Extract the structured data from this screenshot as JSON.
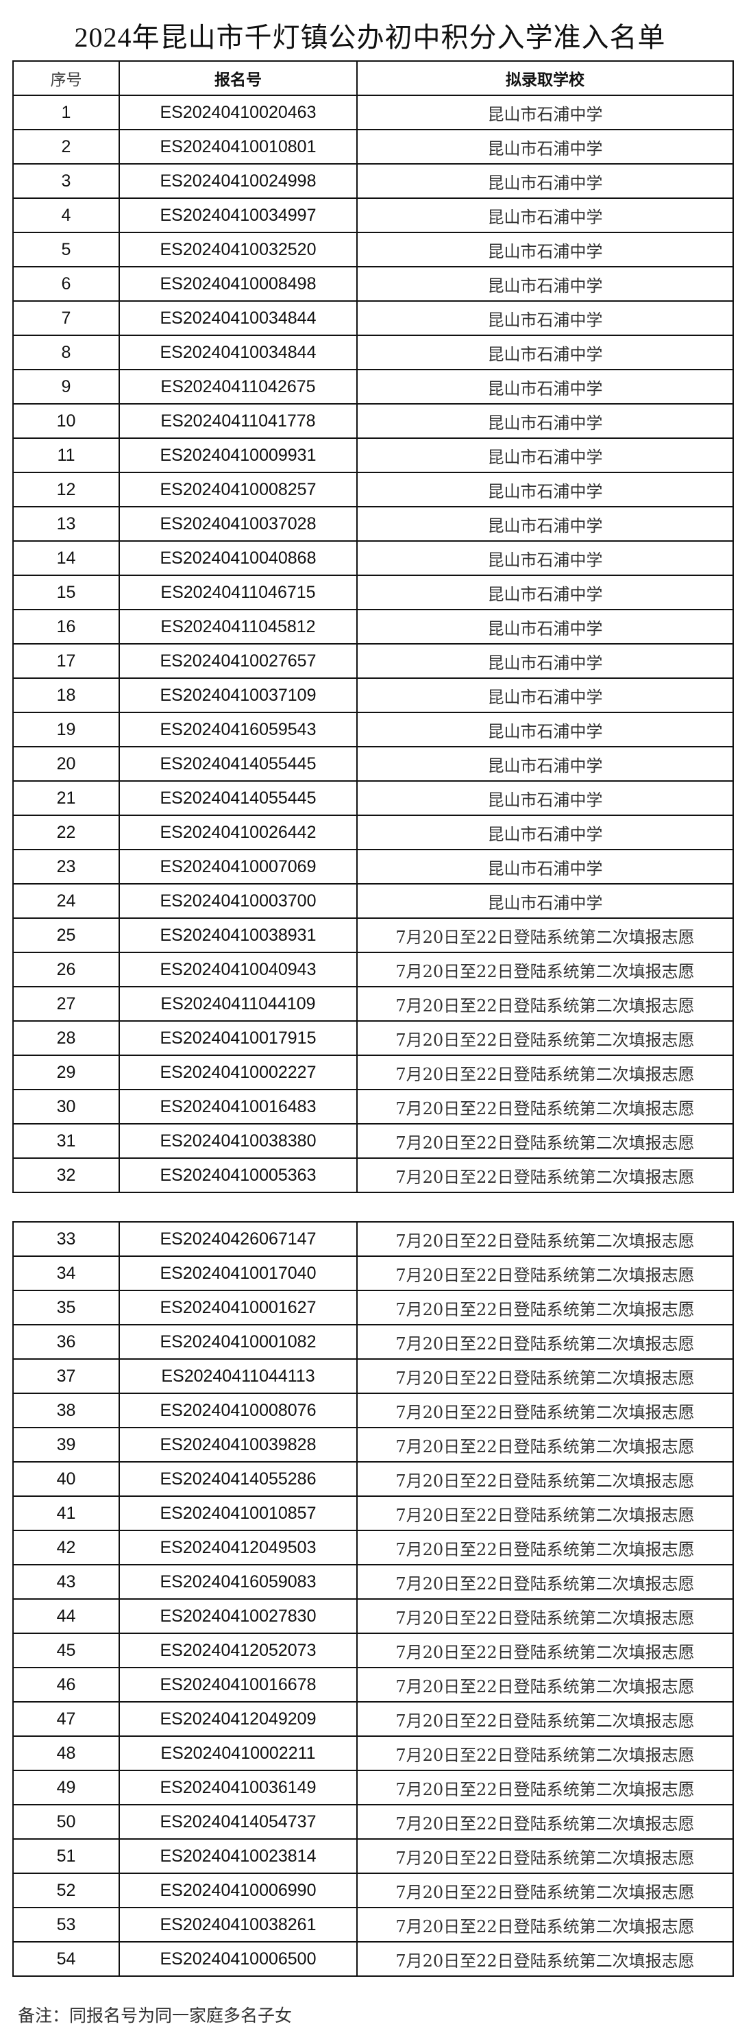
{
  "title": "2024年昆山市千灯镇公办初中积分入学准入名单",
  "headers": {
    "seq": "序号",
    "reg_no": "报名号",
    "school": "拟录取学校"
  },
  "rows": [
    [
      "1",
      "ES20240410020463",
      "昆山市石浦中学"
    ],
    [
      "2",
      "ES20240410010801",
      "昆山市石浦中学"
    ],
    [
      "3",
      "ES20240410024998",
      "昆山市石浦中学"
    ],
    [
      "4",
      "ES20240410034997",
      "昆山市石浦中学"
    ],
    [
      "5",
      "ES20240410032520",
      "昆山市石浦中学"
    ],
    [
      "6",
      "ES20240410008498",
      "昆山市石浦中学"
    ],
    [
      "7",
      "ES20240410034844",
      "昆山市石浦中学"
    ],
    [
      "8",
      "ES20240410034844",
      "昆山市石浦中学"
    ],
    [
      "9",
      "ES20240411042675",
      "昆山市石浦中学"
    ],
    [
      "10",
      "ES20240411041778",
      "昆山市石浦中学"
    ],
    [
      "11",
      "ES20240410009931",
      "昆山市石浦中学"
    ],
    [
      "12",
      "ES20240410008257",
      "昆山市石浦中学"
    ],
    [
      "13",
      "ES20240410037028",
      "昆山市石浦中学"
    ],
    [
      "14",
      "ES20240410040868",
      "昆山市石浦中学"
    ],
    [
      "15",
      "ES20240411046715",
      "昆山市石浦中学"
    ],
    [
      "16",
      "ES20240411045812",
      "昆山市石浦中学"
    ],
    [
      "17",
      "ES20240410027657",
      "昆山市石浦中学"
    ],
    [
      "18",
      "ES20240410037109",
      "昆山市石浦中学"
    ],
    [
      "19",
      "ES20240416059543",
      "昆山市石浦中学"
    ],
    [
      "20",
      "ES20240414055445",
      "昆山市石浦中学"
    ],
    [
      "21",
      "ES20240414055445",
      "昆山市石浦中学"
    ],
    [
      "22",
      "ES20240410026442",
      "昆山市石浦中学"
    ],
    [
      "23",
      "ES20240410007069",
      "昆山市石浦中学"
    ],
    [
      "24",
      "ES20240410003700",
      "昆山市石浦中学"
    ],
    [
      "25",
      "ES20240410038931",
      "7月20日至22日登陆系统第二次填报志愿"
    ],
    [
      "26",
      "ES20240410040943",
      "7月20日至22日登陆系统第二次填报志愿"
    ],
    [
      "27",
      "ES20240411044109",
      "7月20日至22日登陆系统第二次填报志愿"
    ],
    [
      "28",
      "ES20240410017915",
      "7月20日至22日登陆系统第二次填报志愿"
    ],
    [
      "29",
      "ES20240410002227",
      "7月20日至22日登陆系统第二次填报志愿"
    ],
    [
      "30",
      "ES20240410016483",
      "7月20日至22日登陆系统第二次填报志愿"
    ],
    [
      "31",
      "ES20240410038380",
      "7月20日至22日登陆系统第二次填报志愿"
    ],
    [
      "32",
      "ES20240410005363",
      "7月20日至22日登陆系统第二次填报志愿"
    ],
    [
      "33",
      "ES20240426067147",
      "7月20日至22日登陆系统第二次填报志愿"
    ],
    [
      "34",
      "ES20240410017040",
      "7月20日至22日登陆系统第二次填报志愿"
    ],
    [
      "35",
      "ES20240410001627",
      "7月20日至22日登陆系统第二次填报志愿"
    ],
    [
      "36",
      "ES20240410001082",
      "7月20日至22日登陆系统第二次填报志愿"
    ],
    [
      "37",
      "ES20240411044113",
      "7月20日至22日登陆系统第二次填报志愿"
    ],
    [
      "38",
      "ES20240410008076",
      "7月20日至22日登陆系统第二次填报志愿"
    ],
    [
      "39",
      "ES20240410039828",
      "7月20日至22日登陆系统第二次填报志愿"
    ],
    [
      "40",
      "ES20240414055286",
      "7月20日至22日登陆系统第二次填报志愿"
    ],
    [
      "41",
      "ES20240410010857",
      "7月20日至22日登陆系统第二次填报志愿"
    ],
    [
      "42",
      "ES20240412049503",
      "7月20日至22日登陆系统第二次填报志愿"
    ],
    [
      "43",
      "ES20240416059083",
      "7月20日至22日登陆系统第二次填报志愿"
    ],
    [
      "44",
      "ES20240410027830",
      "7月20日至22日登陆系统第二次填报志愿"
    ],
    [
      "45",
      "ES20240412052073",
      "7月20日至22日登陆系统第二次填报志愿"
    ],
    [
      "46",
      "ES20240410016678",
      "7月20日至22日登陆系统第二次填报志愿"
    ],
    [
      "47",
      "ES20240412049209",
      "7月20日至22日登陆系统第二次填报志愿"
    ],
    [
      "48",
      "ES20240410002211",
      "7月20日至22日登陆系统第二次填报志愿"
    ],
    [
      "49",
      "ES20240410036149",
      "7月20日至22日登陆系统第二次填报志愿"
    ],
    [
      "50",
      "ES20240414054737",
      "7月20日至22日登陆系统第二次填报志愿"
    ],
    [
      "51",
      "ES20240410023814",
      "7月20日至22日登陆系统第二次填报志愿"
    ],
    [
      "52",
      "ES20240410006990",
      "7月20日至22日登陆系统第二次填报志愿"
    ],
    [
      "53",
      "ES20240410038261",
      "7月20日至22日登陆系统第二次填报志愿"
    ],
    [
      "54",
      "ES20240410006500",
      "7月20日至22日登陆系统第二次填报志愿"
    ]
  ],
  "note": "备注：同报名号为同一家庭多名子女"
}
